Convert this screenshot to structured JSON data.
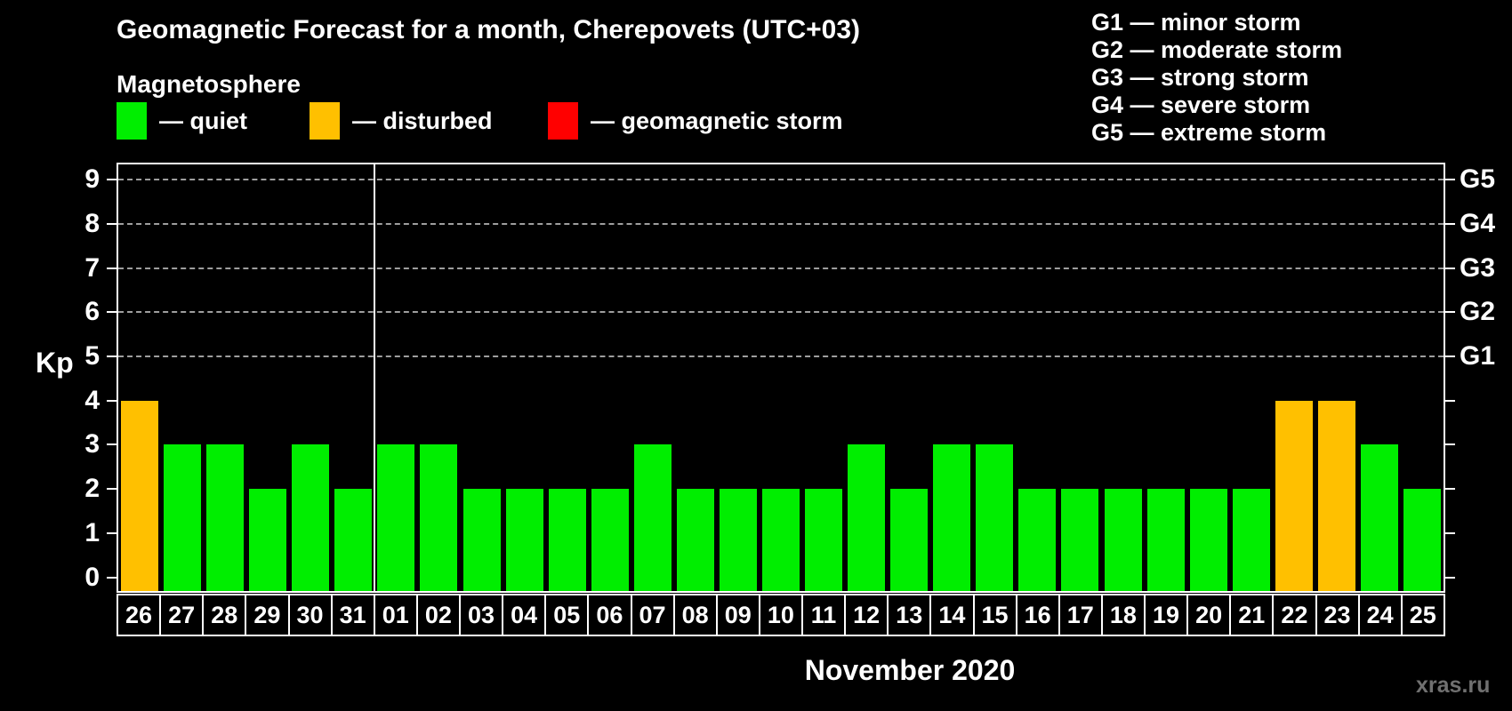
{
  "header": {
    "title": "Geomagnetic Forecast for a month, Cherepovets (UTC+03)",
    "subtitle": "Magnetosphere"
  },
  "legend": {
    "items": [
      {
        "state": "quiet",
        "label": "— quiet",
        "color": "#00ee00"
      },
      {
        "state": "disturbed",
        "label": "— disturbed",
        "color": "#ffc000"
      },
      {
        "state": "storm",
        "label": "— geomagnetic storm",
        "color": "#ff0000"
      }
    ]
  },
  "g_scale_legend": {
    "items": [
      "G1 — minor storm",
      "G2 — moderate storm",
      "G3 — strong storm",
      "G4 — severe storm",
      "G5 — extreme storm"
    ]
  },
  "watermark": "xras.ru",
  "chart_data": {
    "type": "bar",
    "title": "Geomagnetic Forecast for a month, Cherepovets (UTC+03)",
    "subtitle": "Magnetosphere",
    "xlabel": "November 2020",
    "ylabel": "Kp",
    "ylim": [
      0,
      9
    ],
    "grid": "dashed horizontal lines at Kp 5,6,7,8,9",
    "legend_position": "top",
    "categories": [
      "26",
      "27",
      "28",
      "29",
      "30",
      "31",
      "01",
      "02",
      "03",
      "04",
      "05",
      "06",
      "07",
      "08",
      "09",
      "10",
      "11",
      "12",
      "13",
      "14",
      "15",
      "16",
      "17",
      "18",
      "19",
      "20",
      "21",
      "22",
      "23",
      "24",
      "25"
    ],
    "values": [
      4,
      3,
      3,
      2,
      3,
      2,
      3,
      3,
      2,
      2,
      2,
      2,
      3,
      2,
      2,
      2,
      2,
      3,
      2,
      3,
      3,
      2,
      2,
      2,
      2,
      2,
      2,
      4,
      4,
      3,
      2
    ],
    "bar_states": [
      "disturbed",
      "quiet",
      "quiet",
      "quiet",
      "quiet",
      "quiet",
      "quiet",
      "quiet",
      "quiet",
      "quiet",
      "quiet",
      "quiet",
      "quiet",
      "quiet",
      "quiet",
      "quiet",
      "quiet",
      "quiet",
      "quiet",
      "quiet",
      "quiet",
      "quiet",
      "quiet",
      "quiet",
      "quiet",
      "quiet",
      "quiet",
      "disturbed",
      "disturbed",
      "quiet",
      "quiet"
    ],
    "state_colors": {
      "quiet": "#00ee00",
      "disturbed": "#ffc000",
      "storm": "#ff0000"
    },
    "left_axis_ticks": [
      "0",
      "1",
      "2",
      "3",
      "4",
      "5",
      "6",
      "7",
      "8",
      "9"
    ],
    "right_axis_labels": [
      {
        "level": 5,
        "label": "G1"
      },
      {
        "level": 6,
        "label": "G2"
      },
      {
        "level": 7,
        "label": "G3"
      },
      {
        "level": 8,
        "label": "G4"
      },
      {
        "level": 9,
        "label": "G5"
      }
    ],
    "month_separator_after_index": 5
  }
}
